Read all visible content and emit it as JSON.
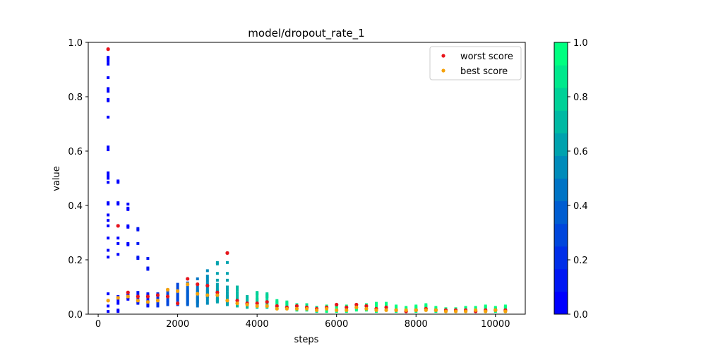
{
  "chart_data": {
    "type": "scatter",
    "title": "model/dropout_rate_1",
    "xlabel": "steps",
    "ylabel": "value",
    "xlim": [
      -250,
      10750
    ],
    "ylim": [
      0,
      1.0
    ],
    "xticks": [
      0,
      2000,
      4000,
      6000,
      8000,
      10000
    ],
    "xtick_labels": [
      "0",
      "2000",
      "4000",
      "6000",
      "8000",
      "10000"
    ],
    "yticks": [
      0.0,
      0.2,
      0.4,
      0.6,
      0.8,
      1.0
    ],
    "ytick_labels": [
      "0.0",
      "0.2",
      "0.4",
      "0.6",
      "0.8",
      "1.0"
    ],
    "grid": false,
    "legend": {
      "placement": "top-right",
      "entries": [
        {
          "label": "worst score",
          "color": "#e8141b"
        },
        {
          "label": "best score",
          "color": "#f5a20a"
        }
      ]
    },
    "colorbar": {
      "range": [
        0.0,
        1.0
      ],
      "ticks": [
        0.0,
        0.2,
        0.4,
        0.6,
        0.8,
        1.0
      ],
      "tick_labels": [
        "0.0",
        "0.2",
        "0.4",
        "0.6",
        "0.8",
        "1.0"
      ],
      "levels": 12,
      "color_low": "#0000ff",
      "color_high": "#00ff80"
    },
    "series": [
      {
        "columns": [
          {
            "x": 250,
            "c": 0.0,
            "y": [
              0.975,
              0.945,
              0.94,
              0.93,
              0.92,
              0.87,
              0.83,
              0.82,
              0.79,
              0.785,
              0.725,
              0.615,
              0.605,
              0.52,
              0.51,
              0.5,
              0.485,
              0.41,
              0.405,
              0.365,
              0.345,
              0.325,
              0.28,
              0.235,
              0.21,
              0.075,
              0.05,
              0.03,
              0.01
            ]
          },
          {
            "x": 500,
            "c": 0.03,
            "y": [
              0.49,
              0.485,
              0.41,
              0.405,
              0.325,
              0.28,
              0.26,
              0.22,
              0.065,
              0.05,
              0.04,
              0.015,
              0.01
            ]
          },
          {
            "x": 750,
            "c": 0.06,
            "y": [
              0.405,
              0.39,
              0.385,
              0.325,
              0.32,
              0.26,
              0.255,
              0.075,
              0.07,
              0.065,
              0.06,
              0.055
            ]
          },
          {
            "x": 1000,
            "c": 0.1,
            "y": [
              0.315,
              0.31,
              0.26,
              0.21,
              0.205,
              0.08,
              0.07,
              0.06,
              0.05,
              0.045,
              0.04
            ]
          },
          {
            "x": 1250,
            "c": 0.14,
            "y": [
              0.205,
              0.17,
              0.165,
              0.075,
              0.07,
              0.065,
              0.06,
              0.05,
              0.045,
              0.035,
              0.03
            ]
          },
          {
            "x": 1500,
            "c": 0.2,
            "y": [
              0.075,
              0.07,
              0.065,
              0.06,
              0.055,
              0.05,
              0.04,
              0.035,
              0.03
            ]
          },
          {
            "x": 1750,
            "c": 0.26,
            "y": [
              0.09,
              0.085,
              0.075,
              0.07,
              0.065,
              0.06,
              0.05,
              0.045,
              0.035
            ]
          },
          {
            "x": 2000,
            "c": 0.33,
            "y": [
              0.11,
              0.1,
              0.09,
              0.08,
              0.075,
              0.07,
              0.065,
              0.06,
              0.055,
              0.05,
              0.04,
              0.035
            ]
          },
          {
            "x": 2250,
            "c": 0.4,
            "y": [
              0.13,
              0.115,
              0.1,
              0.09,
              0.085,
              0.08,
              0.075,
              0.07,
              0.065,
              0.06,
              0.055,
              0.05,
              0.045,
              0.04,
              0.035
            ]
          },
          {
            "x": 2500,
            "c": 0.48,
            "y": [
              0.13,
              0.11,
              0.1,
              0.09,
              0.085,
              0.08,
              0.075,
              0.065,
              0.06,
              0.055,
              0.05,
              0.045,
              0.04,
              0.03
            ]
          },
          {
            "x": 2750,
            "c": 0.55,
            "y": [
              0.16,
              0.14,
              0.13,
              0.12,
              0.11,
              0.1,
              0.09,
              0.085,
              0.08,
              0.075,
              0.07,
              0.065,
              0.06,
              0.05,
              0.04
            ]
          },
          {
            "x": 3000,
            "c": 0.6,
            "y": [
              0.19,
              0.185,
              0.15,
              0.125,
              0.11,
              0.1,
              0.09,
              0.085,
              0.08,
              0.075,
              0.07,
              0.06,
              0.055,
              0.05,
              0.045
            ]
          },
          {
            "x": 3250,
            "c": 0.64,
            "y": [
              0.225,
              0.19,
              0.15,
              0.125,
              0.1,
              0.09,
              0.08,
              0.07,
              0.065,
              0.06,
              0.05,
              0.045,
              0.04,
              0.035
            ]
          },
          {
            "x": 3500,
            "c": 0.68,
            "y": [
              0.1,
              0.09,
              0.08,
              0.07,
              0.06,
              0.055,
              0.05,
              0.045,
              0.04,
              0.035,
              0.03
            ]
          },
          {
            "x": 3750,
            "c": 0.72,
            "y": [
              0.065,
              0.06,
              0.055,
              0.05,
              0.045,
              0.04,
              0.035,
              0.03,
              0.025
            ]
          },
          {
            "x": 4000,
            "c": 0.76,
            "y": [
              0.08,
              0.075,
              0.07,
              0.06,
              0.055,
              0.05,
              0.045,
              0.04,
              0.035,
              0.03,
              0.025
            ]
          },
          {
            "x": 4250,
            "c": 0.8,
            "y": [
              0.075,
              0.07,
              0.065,
              0.06,
              0.05,
              0.045,
              0.04,
              0.035,
              0.03,
              0.025
            ]
          },
          {
            "x": 4500,
            "c": 0.84,
            "y": [
              0.05,
              0.045,
              0.04,
              0.035,
              0.03,
              0.025,
              0.02
            ]
          },
          {
            "x": 4750,
            "c": 0.86,
            "y": [
              0.045,
              0.04,
              0.035,
              0.03,
              0.025,
              0.02
            ]
          },
          {
            "x": 5000,
            "c": 0.88,
            "y": [
              0.035,
              0.03,
              0.025,
              0.02,
              0.015
            ]
          },
          {
            "x": 5250,
            "c": 0.9,
            "y": [
              0.035,
              0.03,
              0.025,
              0.02,
              0.015
            ]
          },
          {
            "x": 5500,
            "c": 0.91,
            "y": [
              0.025,
              0.02,
              0.015,
              0.01
            ]
          },
          {
            "x": 5750,
            "c": 0.92,
            "y": [
              0.03,
              0.025,
              0.02,
              0.015,
              0.01
            ]
          },
          {
            "x": 6000,
            "c": 0.93,
            "y": [
              0.035,
              0.03,
              0.025,
              0.02,
              0.015,
              0.01
            ]
          },
          {
            "x": 6250,
            "c": 0.94,
            "y": [
              0.03,
              0.025,
              0.02,
              0.015,
              0.01
            ]
          },
          {
            "x": 6500,
            "c": 0.95,
            "y": [
              0.035,
              0.03,
              0.025,
              0.02,
              0.015
            ]
          },
          {
            "x": 6750,
            "c": 0.95,
            "y": [
              0.035,
              0.03,
              0.025,
              0.02,
              0.015
            ]
          },
          {
            "x": 7000,
            "c": 0.96,
            "y": [
              0.04,
              0.035,
              0.03,
              0.02,
              0.015,
              0.01
            ]
          },
          {
            "x": 7250,
            "c": 0.96,
            "y": [
              0.04,
              0.035,
              0.03,
              0.025,
              0.02,
              0.015
            ]
          },
          {
            "x": 7500,
            "c": 0.97,
            "y": [
              0.03,
              0.025,
              0.02,
              0.015,
              0.01
            ]
          },
          {
            "x": 7750,
            "c": 0.97,
            "y": [
              0.025,
              0.02,
              0.015,
              0.01
            ]
          },
          {
            "x": 8000,
            "c": 0.97,
            "y": [
              0.03,
              0.025,
              0.02,
              0.015,
              0.01
            ]
          },
          {
            "x": 8250,
            "c": 0.98,
            "y": [
              0.035,
              0.03,
              0.025,
              0.02,
              0.015
            ]
          },
          {
            "x": 8500,
            "c": 0.98,
            "y": [
              0.025,
              0.02,
              0.015,
              0.01
            ]
          },
          {
            "x": 8750,
            "c": 0.98,
            "y": [
              0.02,
              0.015,
              0.01
            ]
          },
          {
            "x": 9000,
            "c": 0.99,
            "y": [
              0.02,
              0.015,
              0.01
            ]
          },
          {
            "x": 9250,
            "c": 0.99,
            "y": [
              0.025,
              0.02,
              0.015,
              0.01
            ]
          },
          {
            "x": 9500,
            "c": 0.99,
            "y": [
              0.025,
              0.02,
              0.015,
              0.01
            ]
          },
          {
            "x": 9750,
            "c": 1.0,
            "y": [
              0.03,
              0.025,
              0.02,
              0.015,
              0.01
            ]
          },
          {
            "x": 10000,
            "c": 1.0,
            "y": [
              0.025,
              0.02,
              0.015,
              0.01
            ]
          },
          {
            "x": 10250,
            "c": 1.0,
            "y": [
              0.03,
              0.025,
              0.02,
              0.015,
              0.01
            ]
          }
        ]
      },
      {
        "name": "worst score",
        "color": "#e8141b",
        "points": [
          {
            "x": 250,
            "y": 0.975
          },
          {
            "x": 500,
            "y": 0.325
          },
          {
            "x": 750,
            "y": 0.08
          },
          {
            "x": 1000,
            "y": 0.065
          },
          {
            "x": 1250,
            "y": 0.065
          },
          {
            "x": 1500,
            "y": 0.07
          },
          {
            "x": 1750,
            "y": 0.065
          },
          {
            "x": 2000,
            "y": 0.04
          },
          {
            "x": 2250,
            "y": 0.13
          },
          {
            "x": 2500,
            "y": 0.11
          },
          {
            "x": 2750,
            "y": 0.105
          },
          {
            "x": 3000,
            "y": 0.08
          },
          {
            "x": 3250,
            "y": 0.225
          },
          {
            "x": 3500,
            "y": 0.05
          },
          {
            "x": 3750,
            "y": 0.04
          },
          {
            "x": 4000,
            "y": 0.04
          },
          {
            "x": 4250,
            "y": 0.045
          },
          {
            "x": 4500,
            "y": 0.03
          },
          {
            "x": 4750,
            "y": 0.025
          },
          {
            "x": 5000,
            "y": 0.03
          },
          {
            "x": 5250,
            "y": 0.025
          },
          {
            "x": 5500,
            "y": 0.02
          },
          {
            "x": 5750,
            "y": 0.025
          },
          {
            "x": 6000,
            "y": 0.035
          },
          {
            "x": 6250,
            "y": 0.025
          },
          {
            "x": 6500,
            "y": 0.035
          },
          {
            "x": 6750,
            "y": 0.03
          },
          {
            "x": 7000,
            "y": 0.02
          },
          {
            "x": 7250,
            "y": 0.025
          },
          {
            "x": 7500,
            "y": 0.015
          },
          {
            "x": 7750,
            "y": 0.01
          },
          {
            "x": 8000,
            "y": 0.015
          },
          {
            "x": 8250,
            "y": 0.02
          },
          {
            "x": 8500,
            "y": 0.015
          },
          {
            "x": 8750,
            "y": 0.015
          },
          {
            "x": 9000,
            "y": 0.015
          },
          {
            "x": 9250,
            "y": 0.015
          },
          {
            "x": 9500,
            "y": 0.01
          },
          {
            "x": 9750,
            "y": 0.015
          },
          {
            "x": 10000,
            "y": 0.015
          },
          {
            "x": 10250,
            "y": 0.015
          }
        ]
      },
      {
        "name": "best score",
        "color": "#f5a20a",
        "points": [
          {
            "x": 250,
            "y": 0.05
          },
          {
            "x": 500,
            "y": 0.06
          },
          {
            "x": 750,
            "y": 0.065
          },
          {
            "x": 1000,
            "y": 0.05
          },
          {
            "x": 1250,
            "y": 0.045
          },
          {
            "x": 1500,
            "y": 0.05
          },
          {
            "x": 1750,
            "y": 0.09
          },
          {
            "x": 2000,
            "y": 0.085
          },
          {
            "x": 2250,
            "y": 0.11
          },
          {
            "x": 2500,
            "y": 0.075
          },
          {
            "x": 2750,
            "y": 0.07
          },
          {
            "x": 3000,
            "y": 0.07
          },
          {
            "x": 3250,
            "y": 0.05
          },
          {
            "x": 3500,
            "y": 0.04
          },
          {
            "x": 3750,
            "y": 0.035
          },
          {
            "x": 4000,
            "y": 0.03
          },
          {
            "x": 4250,
            "y": 0.03
          },
          {
            "x": 4500,
            "y": 0.02
          },
          {
            "x": 4750,
            "y": 0.02
          },
          {
            "x": 5000,
            "y": 0.02
          },
          {
            "x": 5250,
            "y": 0.02
          },
          {
            "x": 5500,
            "y": 0.015
          },
          {
            "x": 5750,
            "y": 0.02
          },
          {
            "x": 6000,
            "y": 0.015
          },
          {
            "x": 6250,
            "y": 0.015
          },
          {
            "x": 6500,
            "y": 0.025
          },
          {
            "x": 6750,
            "y": 0.02
          },
          {
            "x": 7000,
            "y": 0.015
          },
          {
            "x": 7250,
            "y": 0.015
          },
          {
            "x": 7500,
            "y": 0.015
          },
          {
            "x": 7750,
            "y": 0.015
          },
          {
            "x": 8000,
            "y": 0.015
          },
          {
            "x": 8250,
            "y": 0.015
          },
          {
            "x": 8500,
            "y": 0.015
          },
          {
            "x": 8750,
            "y": 0.01
          },
          {
            "x": 9000,
            "y": 0.01
          },
          {
            "x": 9250,
            "y": 0.01
          },
          {
            "x": 9500,
            "y": 0.015
          },
          {
            "x": 9750,
            "y": 0.01
          },
          {
            "x": 10000,
            "y": 0.015
          },
          {
            "x": 10250,
            "y": 0.01
          }
        ]
      }
    ]
  }
}
